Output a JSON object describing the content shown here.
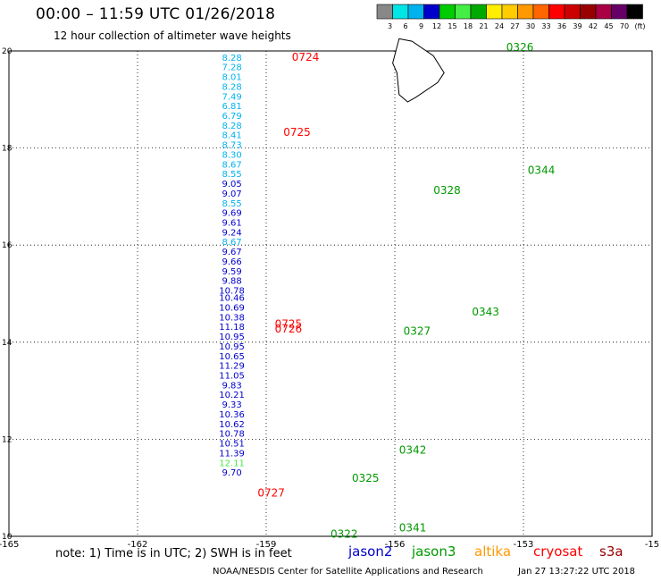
{
  "header": {
    "title": "00:00 – 11:59 UTC 01/26/2018",
    "subtitle": "12 hour collection of altimeter wave heights"
  },
  "footer": {
    "note": "note: 1) Time is in UTC; 2) SWH is in feet",
    "credit": "NOAA/NESDIS Center for Satellite Applications and Research",
    "timestamp": "Jan 27 13:27:22 UTC 2018"
  },
  "legend": {
    "satellites": [
      {
        "name": "jason2",
        "color": "#0000cc"
      },
      {
        "name": "jason3",
        "color": "#009900"
      },
      {
        "name": "altika",
        "color": "#ff9900"
      },
      {
        "name": "cryosat",
        "color": "#ff0000"
      },
      {
        "name": "s3a",
        "color": "#990000"
      }
    ],
    "colorbar": {
      "labels": [
        "3",
        "6",
        "9",
        "12",
        "15",
        "18",
        "21",
        "24",
        "27",
        "30",
        "33",
        "36",
        "39",
        "42",
        "45",
        "70",
        "(ft)"
      ],
      "colors": [
        "#888888",
        "#00e5e5",
        "#00b2ee",
        "#0000cc",
        "#00cc00",
        "#44ee44",
        "#00aa00",
        "#ffee00",
        "#ffcc00",
        "#ff9900",
        "#ff6600",
        "#ff0000",
        "#cc0000",
        "#990000",
        "#aa0044",
        "#660066",
        "#000000"
      ]
    }
  },
  "chart_data": {
    "type": "scatter",
    "xlim": [
      -165,
      -150
    ],
    "ylim": [
      10,
      20
    ],
    "xticks": [
      "-165",
      "-162",
      "-159",
      "-156",
      "-153",
      "-15"
    ],
    "yticks": [
      "20",
      "18",
      "16",
      "14",
      "12",
      "10"
    ],
    "grid": "dotted",
    "track_labels": [
      {
        "text": "0724",
        "x": -158.4,
        "y": 19.8,
        "color": "#ff0000"
      },
      {
        "text": "0725",
        "x": -158.6,
        "y": 18.25,
        "color": "#ff0000"
      },
      {
        "text": "0725",
        "x": -158.8,
        "y": 14.3,
        "color": "#ff0000"
      },
      {
        "text": "0726",
        "x": -158.8,
        "y": 14.2,
        "color": "#ff0000"
      },
      {
        "text": "0727",
        "x": -159.2,
        "y": 10.82,
        "color": "#ff0000"
      },
      {
        "text": "0326",
        "x": -153.4,
        "y": 20.0,
        "color": "#009900"
      },
      {
        "text": "0344",
        "x": -152.9,
        "y": 17.47,
        "color": "#009900"
      },
      {
        "text": "0328",
        "x": -155.1,
        "y": 17.05,
        "color": "#009900"
      },
      {
        "text": "0343",
        "x": -154.2,
        "y": 14.55,
        "color": "#009900"
      },
      {
        "text": "0327",
        "x": -155.8,
        "y": 14.15,
        "color": "#009900"
      },
      {
        "text": "0342",
        "x": -155.9,
        "y": 11.7,
        "color": "#009900"
      },
      {
        "text": "0325",
        "x": -157.0,
        "y": 11.12,
        "color": "#009900"
      },
      {
        "text": "0341",
        "x": -155.9,
        "y": 10.1,
        "color": "#009900"
      },
      {
        "text": "0322",
        "x": -157.5,
        "y": 9.97,
        "color": "#009900"
      }
    ],
    "series": [
      {
        "color_key": "mixed",
        "points": [
          {
            "x": -159.8,
            "y": 19.8,
            "v": "8.28",
            "c": "#00b2ee"
          },
          {
            "x": -159.8,
            "y": 19.6,
            "v": "7.28",
            "c": "#00b2ee"
          },
          {
            "x": -159.8,
            "y": 19.4,
            "v": "8.01",
            "c": "#00b2ee"
          },
          {
            "x": -159.8,
            "y": 19.2,
            "v": "8.28",
            "c": "#00b2ee"
          },
          {
            "x": -159.8,
            "y": 19.0,
            "v": "7.49",
            "c": "#00b2ee"
          },
          {
            "x": -159.8,
            "y": 18.8,
            "v": "6.81",
            "c": "#00b2ee"
          },
          {
            "x": -159.8,
            "y": 18.6,
            "v": "6.79",
            "c": "#00b2ee"
          },
          {
            "x": -159.8,
            "y": 18.4,
            "v": "8.28",
            "c": "#00b2ee"
          },
          {
            "x": -159.8,
            "y": 18.2,
            "v": "8.41",
            "c": "#00b2ee"
          },
          {
            "x": -159.8,
            "y": 18.0,
            "v": "8.73",
            "c": "#00b2ee"
          },
          {
            "x": -159.8,
            "y": 17.8,
            "v": "8.30",
            "c": "#00b2ee"
          },
          {
            "x": -159.8,
            "y": 17.6,
            "v": "8.67",
            "c": "#00b2ee"
          },
          {
            "x": -159.8,
            "y": 17.4,
            "v": "8.55",
            "c": "#00b2ee"
          },
          {
            "x": -159.8,
            "y": 17.2,
            "v": "9.05",
            "c": "#0000cc"
          },
          {
            "x": -159.8,
            "y": 17.0,
            "v": "9.07",
            "c": "#0000cc"
          },
          {
            "x": -159.8,
            "y": 16.8,
            "v": "8.55",
            "c": "#00b2ee"
          },
          {
            "x": -159.8,
            "y": 16.6,
            "v": "9.69",
            "c": "#0000cc"
          },
          {
            "x": -159.8,
            "y": 16.4,
            "v": "9.61",
            "c": "#0000cc"
          },
          {
            "x": -159.8,
            "y": 16.2,
            "v": "9.24",
            "c": "#0000cc"
          },
          {
            "x": -159.8,
            "y": 16.0,
            "v": "8.67",
            "c": "#00b2ee"
          },
          {
            "x": -159.8,
            "y": 15.8,
            "v": "9.67",
            "c": "#0000cc"
          },
          {
            "x": -159.8,
            "y": 15.6,
            "v": "9.66",
            "c": "#0000cc"
          },
          {
            "x": -159.8,
            "y": 15.4,
            "v": "9.59",
            "c": "#0000cc"
          },
          {
            "x": -159.8,
            "y": 15.2,
            "v": "9.88",
            "c": "#0000cc"
          },
          {
            "x": -159.8,
            "y": 15.0,
            "v": "10.78",
            "c": "#0000cc"
          },
          {
            "x": -159.8,
            "y": 14.85,
            "v": "10.46",
            "c": "#0000cc"
          },
          {
            "x": -159.8,
            "y": 14.65,
            "v": "10.69",
            "c": "#0000cc"
          },
          {
            "x": -159.8,
            "y": 14.45,
            "v": "10.38",
            "c": "#0000cc"
          },
          {
            "x": -159.8,
            "y": 14.25,
            "v": "11.18",
            "c": "#0000cc"
          },
          {
            "x": -159.8,
            "y": 14.05,
            "v": "10.95",
            "c": "#0000cc"
          },
          {
            "x": -159.8,
            "y": 13.85,
            "v": "10.95",
            "c": "#0000cc"
          },
          {
            "x": -159.8,
            "y": 13.65,
            "v": "10.65",
            "c": "#0000cc"
          },
          {
            "x": -159.8,
            "y": 13.45,
            "v": "11.29",
            "c": "#0000cc"
          },
          {
            "x": -159.8,
            "y": 13.25,
            "v": "11.05",
            "c": "#0000cc"
          },
          {
            "x": -159.8,
            "y": 13.05,
            "v": "9.83",
            "c": "#0000cc"
          },
          {
            "x": -159.8,
            "y": 12.85,
            "v": "10.21",
            "c": "#0000cc"
          },
          {
            "x": -159.8,
            "y": 12.65,
            "v": "9.33",
            "c": "#0000cc"
          },
          {
            "x": -159.8,
            "y": 12.45,
            "v": "10.36",
            "c": "#0000cc"
          },
          {
            "x": -159.8,
            "y": 12.25,
            "v": "10.62",
            "c": "#0000cc"
          },
          {
            "x": -159.8,
            "y": 12.05,
            "v": "10.78",
            "c": "#0000cc"
          },
          {
            "x": -159.8,
            "y": 11.85,
            "v": "10.51",
            "c": "#0000cc"
          },
          {
            "x": -159.8,
            "y": 11.65,
            "v": "11.39",
            "c": "#0000cc"
          },
          {
            "x": -159.8,
            "y": 11.45,
            "v": "12.11",
            "c": "#44ee44"
          },
          {
            "x": -159.8,
            "y": 11.25,
            "v": "9.70",
            "c": "#0000cc"
          }
        ]
      }
    ]
  }
}
